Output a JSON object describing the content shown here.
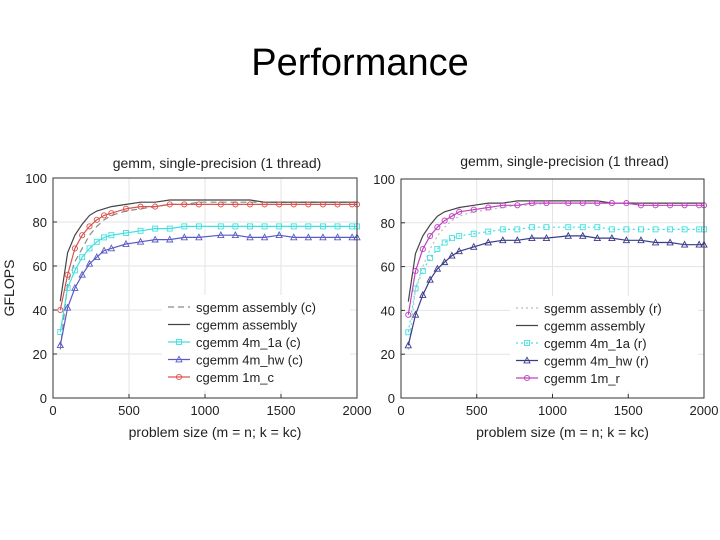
{
  "slide": {
    "title": "Performance"
  },
  "chart_data": [
    {
      "type": "line",
      "title": "gemm, single-precision (1 thread)",
      "xlabel": "problem size (m = n; k = kc)",
      "ylabel": "GFLOPS",
      "xlim": [
        0,
        2000
      ],
      "ylim": [
        0,
        100
      ],
      "xticks": [
        "0",
        "500",
        "1000",
        "1500",
        "2000"
      ],
      "yticks": [
        "0",
        "20",
        "40",
        "60",
        "80",
        "100"
      ],
      "grid": true,
      "legend_position": "bottom-right",
      "x": [
        48,
        96,
        144,
        192,
        240,
        288,
        336,
        384,
        480,
        576,
        672,
        768,
        864,
        960,
        1104,
        1200,
        1296,
        1392,
        1488,
        1584,
        1680,
        1776,
        1872,
        1968,
        2000
      ],
      "series": [
        {
          "name": "sgemm assembly (c)",
          "color": "#888888",
          "dash": "6,4",
          "marker": "none",
          "values": [
            22,
            52,
            62,
            68,
            74,
            78,
            81,
            83,
            85,
            86,
            87,
            88,
            88,
            89,
            89,
            89,
            89,
            89,
            89,
            89,
            89,
            89,
            89,
            89,
            89
          ]
        },
        {
          "name": "cgemm assembly",
          "color": "#444444",
          "dash": "",
          "marker": "none",
          "values": [
            44,
            66,
            74,
            79,
            83,
            85,
            86,
            87,
            88,
            89,
            89,
            90,
            90,
            90,
            90,
            90,
            90,
            89,
            89,
            89,
            89,
            89,
            89,
            89,
            89
          ]
        },
        {
          "name": "cgemm 4m_1a (c)",
          "color": "#40e0e0",
          "dash": "",
          "marker": "square",
          "values": [
            30,
            50,
            58,
            64,
            68,
            71,
            73,
            74,
            75,
            76,
            77,
            77,
            78,
            78,
            78,
            78,
            78,
            78,
            78,
            78,
            78,
            78,
            78,
            78,
            78
          ]
        },
        {
          "name": "cgemm 4m_hw (c)",
          "color": "#5a5ac8",
          "dash": "",
          "marker": "triangle",
          "values": [
            24,
            41,
            50,
            56,
            61,
            64,
            67,
            68,
            70,
            71,
            72,
            72,
            73,
            73,
            74,
            74,
            73,
            73,
            74,
            73,
            73,
            73,
            73,
            73,
            73
          ]
        },
        {
          "name": "cgemm 1m_c",
          "color": "#d9534f",
          "dash": "",
          "marker": "circle",
          "values": [
            40,
            56,
            68,
            74,
            78,
            81,
            83,
            84,
            86,
            87,
            87,
            88,
            88,
            88,
            88,
            88,
            88,
            88,
            88,
            88,
            88,
            88,
            88,
            88,
            88
          ]
        }
      ]
    },
    {
      "type": "line",
      "title": "gemm, single-precision (1 thread)",
      "xlabel": "problem size (m = n; k = kc)",
      "ylabel": "",
      "xlim": [
        0,
        2000
      ],
      "ylim": [
        0,
        100
      ],
      "xticks": [
        "0",
        "500",
        "1000",
        "1500",
        "2000"
      ],
      "yticks": [
        "0",
        "20",
        "40",
        "60",
        "80",
        "100"
      ],
      "grid": true,
      "legend_position": "bottom-right",
      "x": [
        48,
        96,
        144,
        192,
        240,
        288,
        336,
        384,
        480,
        576,
        672,
        768,
        864,
        960,
        1104,
        1200,
        1296,
        1392,
        1488,
        1584,
        1680,
        1776,
        1872,
        1968,
        2000
      ],
      "series": [
        {
          "name": "sgemm assembly (r)",
          "color": "#bbbbbb",
          "dash": "2,3",
          "marker": "none",
          "values": [
            22,
            50,
            60,
            68,
            74,
            78,
            81,
            83,
            85,
            86,
            87,
            88,
            88,
            89,
            89,
            89,
            89,
            89,
            89,
            89,
            89,
            89,
            89,
            89,
            89
          ]
        },
        {
          "name": "cgemm assembly",
          "color": "#444444",
          "dash": "",
          "marker": "none",
          "values": [
            44,
            66,
            74,
            79,
            83,
            85,
            86,
            87,
            88,
            89,
            89,
            90,
            90,
            90,
            90,
            90,
            90,
            89,
            89,
            89,
            89,
            89,
            89,
            89,
            89
          ]
        },
        {
          "name": "cgemm 4m_1a (r)",
          "color": "#40e0e0",
          "dash": "2,3",
          "marker": "square",
          "values": [
            30,
            50,
            58,
            64,
            68,
            71,
            73,
            74,
            75,
            76,
            77,
            77,
            78,
            78,
            78,
            78,
            78,
            77,
            77,
            77,
            77,
            77,
            77,
            77,
            77
          ]
        },
        {
          "name": "cgemm 4m_hw (r)",
          "color": "#3a3a8a",
          "dash": "",
          "marker": "triangle",
          "values": [
            24,
            38,
            47,
            54,
            59,
            62,
            65,
            67,
            69,
            71,
            72,
            72,
            73,
            73,
            74,
            74,
            73,
            73,
            72,
            72,
            71,
            71,
            70,
            70,
            70
          ]
        },
        {
          "name": "cgemm 1m_r",
          "color": "#c040c0",
          "dash": "",
          "marker": "circle",
          "values": [
            38,
            58,
            68,
            74,
            78,
            81,
            83,
            85,
            86,
            87,
            88,
            88,
            89,
            89,
            89,
            89,
            89,
            89,
            89,
            88,
            88,
            88,
            88,
            88,
            88
          ]
        }
      ]
    }
  ]
}
